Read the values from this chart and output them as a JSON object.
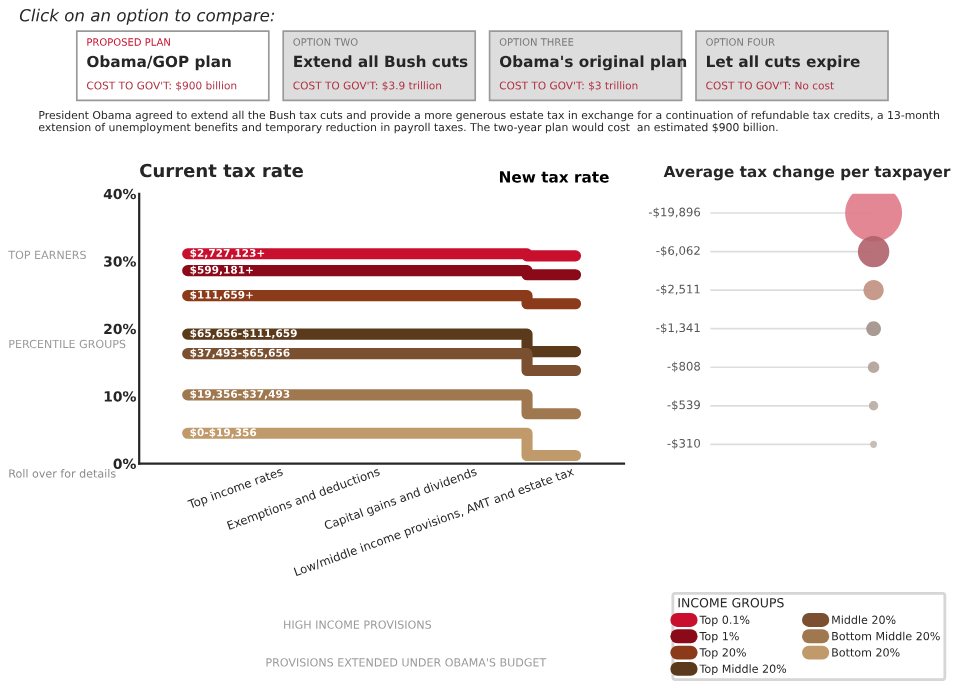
{
  "chart_data": [
    {
      "type": "other",
      "title": "Click on an option to compare:",
      "annotations": [
        "PROPOSED PLAN",
        "Obama/GOP plan",
        "COST TO GOV'T: $900 billion",
        "OPTION TWO",
        "Extend all Bush cuts",
        "COST TO GOV'T: $3.9 trillion",
        "OPTION THREE",
        "Obama's original plan",
        "COST TO GOV'T: $3 trillion",
        "OPTION FOUR",
        "Let all cuts expire",
        "COST TO GOV'T: No cost",
        "President Obama agreed to extend all the Bush tax cuts and provide a more generous estate tax in exchange for a continuation of refundable tax credits, a 13-month extension of unemployment benefits and temporary reduction in payroll taxes. The two-year plan would cost  an estimated $900 billion."
      ]
    },
    {
      "type": "step",
      "title": "Current tax rate",
      "categories": [
        null,
        "Top income rates",
        "Exemptions and deductions",
        "Capital gains and dividends",
        "Low/middle income provisions, AMT and estate tax"
      ],
      "series": [
        {
          "name": "Top 0.1%",
          "color": "#c8102e",
          "values": [
            31.1,
            31.1,
            31.1,
            31.1,
            30.8
          ]
        },
        {
          "name": "Top 1%",
          "color": "#8b0a1a",
          "values": [
            28.6,
            28.6,
            28.6,
            28.6,
            28.0
          ]
        },
        {
          "name": "Top 20%",
          "color": "#8b3a1a",
          "values": [
            24.9,
            24.9,
            24.9,
            24.9,
            23.7
          ]
        },
        {
          "name": "Top Middle 20%",
          "color": "#5a3a1a",
          "values": [
            19.2,
            19.2,
            19.2,
            19.2,
            16.6
          ]
        },
        {
          "name": "Middle 20%",
          "color": "#7a5030",
          "values": [
            16.3,
            16.3,
            16.3,
            16.3,
            13.8
          ]
        },
        {
          "name": "Bottom Middle 20%",
          "color": "#a07850",
          "values": [
            10.2,
            10.2,
            10.2,
            10.2,
            7.4
          ]
        },
        {
          "name": "Bottom 20%",
          "color": "#c09a6a",
          "values": [
            4.5,
            4.5,
            4.5,
            4.5,
            1.2
          ]
        }
      ],
      "ylim": [
        0,
        40
      ],
      "yticks": [
        {
          "value": 0,
          "label": "0%"
        },
        {
          "value": 10,
          "label": "10%"
        },
        {
          "value": 20,
          "label": "20%"
        },
        {
          "value": 30,
          "label": "30%"
        },
        {
          "value": 40,
          "label": "40%"
        }
      ],
      "legend": "bottom right",
      "legend_title": "INCOME GROUPS",
      "annotations": [
        "New tax rate",
        "TOP EARNERS",
        "PERCENTILE GROUPS",
        "Roll over for details",
        "HIGH INCOME PROVISIONS",
        "PROVISIONS EXTENDED UNDER OBAMA'S BUDGET",
        {
          "text": "$2,727,123+",
          "y": 31.1
        },
        {
          "text": "$599,181+",
          "y": 28.6
        },
        {
          "text": "$111,659+",
          "y": 24.9
        },
        {
          "text": "$65,656-$111,659",
          "y": 19.2
        },
        {
          "text": "$37,493-$65,656",
          "y": 16.3
        },
        {
          "text": "$19,356-$37,493",
          "y": 10.2
        },
        {
          "text": "$0-$19,356",
          "y": 4.5
        }
      ]
    },
    {
      "type": "other",
      "title": "Average tax change per taxpayer",
      "categories": [
        null,
        null,
        null,
        null,
        null,
        null,
        null
      ],
      "values": [
        -19896,
        -6062,
        -2511,
        -1341,
        -808,
        -539,
        -310
      ],
      "colors": [
        "#e07a8a",
        "#b0606a",
        "#c09080",
        "#a09088",
        "#b0a098",
        "#b8aca0",
        "#c0b8b0"
      ],
      "value_labels": [
        "-$19,896",
        "-$6,062",
        "-$2,511",
        "-$1,341",
        "-$808",
        "-$539",
        "-$310"
      ]
    }
  ]
}
